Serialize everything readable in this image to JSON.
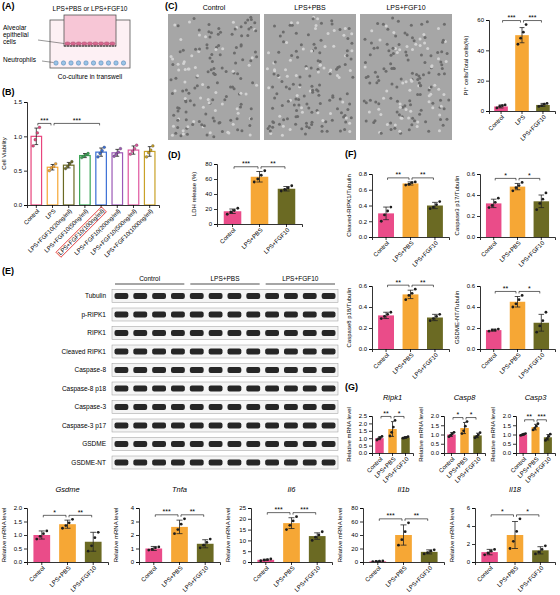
{
  "schematic": {
    "label": "(A)",
    "treatment": "LPS+PBS or LPS+FGF10",
    "epithelial": "Alveolar epithelial cells",
    "neutrophils": "Neutrophils",
    "caption": "Co-culture in transwell"
  },
  "images": {
    "label": "(C)",
    "titles": [
      "Control",
      "LPS+PBS",
      "LPS+FGF10"
    ]
  },
  "blot": {
    "label": "(E)",
    "groups": [
      "Control",
      "LPS+PBS",
      "LPS+FGF10"
    ],
    "rows": [
      "Tubulin",
      "p-RIPK1",
      "RIPK1",
      "Cleaved RIPK1",
      "Caspase-8",
      "Caspase-8 p18",
      "Caspase-3",
      "Caspase-3 p17",
      "GSDME",
      "GSDME-NT"
    ]
  },
  "chart_data": [
    {
      "type": "bar",
      "panel": "(B)",
      "y_label": "Cell Viability",
      "categories": [
        "Control",
        "LPS",
        "LPS+FGF10(20ng/ml)",
        "LPS+FGF10(50ng/ml)",
        "LPS+FGF10(100ng/ml)",
        "LPS+FGF10(200ng/ml)",
        "LPS+FGF10(500ng/ml)",
        "LPS+FGF10(1000ng/ml)"
      ],
      "values": [
        1.0,
        0.55,
        0.58,
        0.72,
        0.77,
        0.76,
        0.8,
        0.78
      ],
      "errors": [
        0.12,
        0.04,
        0.04,
        0.03,
        0.06,
        0.05,
        0.06,
        0.07
      ],
      "points": [
        [
          0.86,
          0.95,
          1.05,
          1.13
        ],
        [
          0.5,
          0.54,
          0.56,
          0.6
        ],
        [
          0.53,
          0.56,
          0.6,
          0.63
        ],
        [
          0.69,
          0.71,
          0.73,
          0.75
        ],
        [
          0.7,
          0.75,
          0.79,
          0.84
        ],
        [
          0.71,
          0.74,
          0.77,
          0.82
        ],
        [
          0.74,
          0.78,
          0.82,
          0.87
        ],
        [
          0.7,
          0.76,
          0.8,
          0.86
        ]
      ],
      "colors": [
        "#e8457d",
        "#f6a735",
        "#6b6a23",
        "#3aa655",
        "#3b6fd6",
        "#9b59b6",
        "#e056a0",
        "#c9a227"
      ],
      "ylim": [
        0,
        1.5
      ],
      "yticks": [
        {
          "value": 0,
          "label": "0.0"
        },
        0.5,
        {
          "value": 1,
          "label": "1.0"
        },
        1.5
      ],
      "annotations": [
        {
          "text": "***",
          "between": [
            "Control",
            "LPS"
          ]
        },
        {
          "text": "***",
          "between": [
            "LPS",
            "LPS+FGF10(100ng/ml)"
          ]
        },
        {
          "box_around": "LPS+FGF10(100ng/ml)"
        }
      ]
    },
    {
      "type": "bar",
      "y_label": "PI⁺ cells/Total cells(%)",
      "categories": [
        "Control",
        "LPS",
        "LPS+FGF10"
      ],
      "values": [
        3,
        50,
        4
      ],
      "errors": [
        1,
        5,
        1
      ],
      "points": [
        [
          2,
          3,
          3.5,
          4
        ],
        [
          44,
          48,
          52,
          57
        ],
        [
          3,
          3.5,
          4.5,
          5
        ]
      ],
      "colors": [
        "#ea4c89",
        "#f6a735",
        "#6b6a23"
      ],
      "ylim": [
        0,
        60
      ],
      "yticks": [
        0,
        20,
        40,
        60
      ],
      "annotations": [
        {
          "text": "***",
          "between": [
            "Control",
            "LPS"
          ]
        },
        {
          "text": "***",
          "between": [
            "LPS",
            "LPS+FGF10"
          ]
        }
      ]
    },
    {
      "type": "bar",
      "panel": "(D)",
      "y_label": "LDH release (%)",
      "categories": [
        "Control",
        "LPS+PBS",
        "LPS+FGF10"
      ],
      "values": [
        17,
        63,
        47
      ],
      "errors": [
        3,
        7,
        3
      ],
      "points": [
        [
          13,
          16,
          18,
          21
        ],
        [
          56,
          60,
          65,
          71
        ],
        [
          44,
          46,
          48,
          51
        ]
      ],
      "colors": [
        "#ea4c89",
        "#f6a735",
        "#6b6a23"
      ],
      "ylim": [
        0,
        80
      ],
      "yticks": [
        0,
        20,
        40,
        60,
        80
      ],
      "annotations": [
        {
          "text": "***",
          "between": [
            "Control",
            "LPS+PBS"
          ]
        },
        {
          "text": "**",
          "between": [
            "LPS+PBS",
            "LPS+FGF10"
          ]
        }
      ]
    },
    {
      "type": "bar",
      "panel": "(F)",
      "y_label": "Cleaved-RIPK1/Tubulin",
      "categories": [
        "Control",
        "LPS+PBS",
        "LPS+FGF10"
      ],
      "values": [
        0.3,
        0.68,
        0.4
      ],
      "errors": [
        0.08,
        0.02,
        0.04
      ],
      "points": [
        [
          0.2,
          0.28,
          0.33,
          0.38
        ],
        [
          0.66,
          0.67,
          0.69,
          0.7
        ],
        [
          0.36,
          0.38,
          0.41,
          0.45
        ]
      ],
      "colors": [
        "#ea4c89",
        "#f6a735",
        "#6b6a23"
      ],
      "ylim": [
        0,
        0.8
      ],
      "yticks": [
        {
          "value": 0,
          "label": "0.0"
        },
        0.2,
        0.4,
        0.6,
        0.8
      ],
      "annotations": [
        {
          "text": "**",
          "between": [
            "Control",
            "LPS+PBS"
          ]
        },
        {
          "text": "**",
          "between": [
            "LPS+PBS",
            "LPS+FGF10"
          ]
        }
      ]
    },
    {
      "type": "bar",
      "y_label": "Caspase3 p17/Tubulin",
      "categories": [
        "Control",
        "LPS+PBS",
        "LPS+FGF10"
      ],
      "values": [
        0.32,
        0.48,
        0.34
      ],
      "errors": [
        0.04,
        0.03,
        0.06
      ],
      "points": [
        [
          0.28,
          0.3,
          0.33,
          0.37
        ],
        [
          0.44,
          0.47,
          0.49,
          0.52
        ],
        [
          0.26,
          0.32,
          0.36,
          0.42
        ]
      ],
      "colors": [
        "#ea4c89",
        "#f6a735",
        "#6b6a23"
      ],
      "ylim": [
        0,
        0.6
      ],
      "yticks": [
        {
          "value": 0,
          "label": "0.0"
        },
        0.2,
        0.4,
        0.6
      ],
      "annotations": [
        {
          "text": "*",
          "between": [
            "Control",
            "LPS+PBS"
          ]
        },
        {
          "text": "*",
          "between": [
            "LPS+PBS",
            "LPS+FGF10"
          ]
        }
      ]
    },
    {
      "type": "bar",
      "y_label": "Caspase8 p18/Tubulin",
      "categories": [
        "Control",
        "LPS+PBS",
        "LPS+FGF10"
      ],
      "values": [
        0.32,
        0.52,
        0.3
      ],
      "errors": [
        0.03,
        0.04,
        0.03
      ],
      "points": [
        [
          0.29,
          0.31,
          0.33,
          0.35
        ],
        [
          0.47,
          0.51,
          0.53,
          0.57
        ],
        [
          0.27,
          0.29,
          0.31,
          0.33
        ]
      ],
      "colors": [
        "#ea4c89",
        "#f6a735",
        "#6b6a23"
      ],
      "ylim": [
        0,
        0.6
      ],
      "yticks": [
        {
          "value": 0,
          "label": "0.0"
        },
        0.2,
        0.4,
        0.6
      ],
      "annotations": [
        {
          "text": "**",
          "between": [
            "Control",
            "LPS+PBS"
          ]
        },
        {
          "text": "**",
          "between": [
            "LPS+PBS",
            "LPS+FGF10"
          ]
        }
      ]
    },
    {
      "type": "bar",
      "y_label": "GSDME-NT/Tubulin",
      "categories": [
        "Control",
        "LPS+PBS",
        "LPS+FGF10"
      ],
      "values": [
        0.18,
        0.45,
        0.25
      ],
      "errors": [
        0.01,
        0.05,
        0.08
      ],
      "points": [
        [
          0.17,
          0.18,
          0.18,
          0.19
        ],
        [
          0.4,
          0.43,
          0.47,
          0.51
        ],
        [
          0.16,
          0.22,
          0.27,
          0.35
        ]
      ],
      "colors": [
        "#ea4c89",
        "#f6a735",
        "#6b6a23"
      ],
      "ylim": [
        0,
        0.6
      ],
      "yticks": [
        {
          "value": 0,
          "label": "0.0"
        },
        0.2,
        0.4,
        0.6
      ],
      "annotations": [
        {
          "text": "**",
          "between": [
            "Control",
            "LPS+PBS"
          ]
        },
        {
          "text": "*",
          "between": [
            "LPS+PBS",
            "LPS+FGF10"
          ]
        }
      ]
    },
    {
      "type": "bar",
      "panel": "(G)",
      "title": "Ripk1",
      "y_label": "Relative mRNA level",
      "categories": [
        "Control",
        "LPS+PBS",
        "LPS+FGF10"
      ],
      "values": [
        1.0,
        1.62,
        1.05
      ],
      "errors": [
        0.1,
        0.5,
        0.05
      ],
      "points": [
        [
          0.88,
          0.97,
          1.03,
          1.12
        ],
        [
          1.15,
          1.4,
          1.75,
          2.2
        ],
        [
          1.0,
          1.03,
          1.06,
          1.1
        ]
      ],
      "colors": [
        "#ea4c89",
        "#f6a735",
        "#6b6a23"
      ],
      "ylim": [
        0,
        2.5
      ],
      "yticks": [
        {
          "value": 0,
          "label": "0.0"
        },
        0.5,
        {
          "value": 1,
          "label": "1.0"
        },
        1.5,
        {
          "value": 2,
          "label": "2.0"
        },
        2.5
      ],
      "annotations": [
        {
          "text": "**",
          "between": [
            "Control",
            "LPS+PBS"
          ]
        },
        {
          "text": "*",
          "between": [
            "LPS+PBS",
            "LPS+FGF10"
          ]
        }
      ]
    },
    {
      "type": "bar",
      "title": "Casp8",
      "y_label": "Relative mRNA level",
      "categories": [
        "Control",
        "LPS+PBS",
        "LPS+FGF10"
      ],
      "values": [
        1.0,
        1.35,
        0.95
      ],
      "errors": [
        0.1,
        0.3,
        0.12
      ],
      "points": [
        [
          0.88,
          0.96,
          1.04,
          1.12
        ],
        [
          1.05,
          1.2,
          1.45,
          1.7
        ],
        [
          0.82,
          0.9,
          0.98,
          1.1
        ]
      ],
      "colors": [
        "#ea4c89",
        "#f6a735",
        "#6b6a23"
      ],
      "ylim": [
        0,
        2
      ],
      "yticks": [
        {
          "value": 0,
          "label": "0.0"
        },
        0.5,
        {
          "value": 1,
          "label": "1.0"
        },
        1.5,
        {
          "value": 2,
          "label": "2.0"
        }
      ],
      "annotations": [
        {
          "text": "*",
          "between": [
            "Control",
            "LPS+PBS"
          ]
        },
        {
          "text": "*",
          "between": [
            "LPS+PBS",
            "LPS+FGF10"
          ]
        }
      ]
    },
    {
      "type": "bar",
      "title": "Casp3",
      "y_label": "Relative mRNA level",
      "categories": [
        "Control",
        "LPS+PBS",
        "LPS+FGF10"
      ],
      "values": [
        1.0,
        1.4,
        0.85
      ],
      "errors": [
        0.05,
        0.15,
        0.15
      ],
      "points": [
        [
          0.95,
          0.98,
          1.02,
          1.05
        ],
        [
          1.25,
          1.35,
          1.45,
          1.58
        ],
        [
          0.68,
          0.78,
          0.9,
          1.02
        ]
      ],
      "colors": [
        "#ea4c89",
        "#f6a735",
        "#6b6a23"
      ],
      "ylim": [
        0,
        2
      ],
      "yticks": [
        {
          "value": 0,
          "label": "0.0"
        },
        0.5,
        {
          "value": 1,
          "label": "1.0"
        },
        1.5,
        {
          "value": 2,
          "label": "2.0"
        }
      ],
      "annotations": [
        {
          "text": "**",
          "between": [
            "Control",
            "LPS+PBS"
          ]
        },
        {
          "text": "***",
          "between": [
            "LPS+PBS",
            "LPS+FGF10"
          ]
        }
      ]
    },
    {
      "type": "bar",
      "title": "Gsdme",
      "y_label": "Relative mRNA level",
      "categories": [
        "Control",
        "LPS+PBS",
        "LPS+FGF10"
      ],
      "values": [
        1.0,
        1.4,
        0.75
      ],
      "errors": [
        0.15,
        0.15,
        0.35
      ],
      "points": [
        [
          0.85,
          0.95,
          1.05,
          1.15
        ],
        [
          1.25,
          1.35,
          1.45,
          1.58
        ],
        [
          0.4,
          0.6,
          0.9,
          1.1
        ]
      ],
      "colors": [
        "#ea4c89",
        "#f6a735",
        "#6b6a23"
      ],
      "ylim": [
        0,
        2
      ],
      "yticks": [
        {
          "value": 0,
          "label": "0.0"
        },
        0.5,
        {
          "value": 1,
          "label": "1.0"
        },
        1.5,
        {
          "value": 2,
          "label": "2.0"
        }
      ],
      "annotations": [
        {
          "text": "*",
          "between": [
            "Control",
            "LPS+PBS"
          ]
        },
        {
          "text": "**",
          "between": [
            "LPS+PBS",
            "LPS+FGF10"
          ]
        }
      ]
    },
    {
      "type": "bar",
      "title": "Tnfa",
      "y_label": "Relative mRNA level",
      "categories": [
        "Control",
        "LPS+PBS",
        "LPS+FGF10"
      ],
      "values": [
        1.0,
        2.6,
        1.35
      ],
      "errors": [
        0.15,
        0.5,
        0.3
      ],
      "points": [
        [
          0.88,
          0.95,
          1.05,
          1.12
        ],
        [
          2.1,
          2.4,
          2.8,
          3.2
        ],
        [
          1.05,
          1.25,
          1.45,
          1.7
        ]
      ],
      "colors": [
        "#ea4c89",
        "#f6a735",
        "#6b6a23"
      ],
      "ylim": [
        0,
        4
      ],
      "yticks": [
        0,
        1,
        2,
        3,
        4
      ],
      "annotations": [
        {
          "text": "***",
          "between": [
            "Control",
            "LPS+PBS"
          ]
        },
        {
          "text": "**",
          "between": [
            "LPS+PBS",
            "LPS+FGF10"
          ]
        }
      ]
    },
    {
      "type": "bar",
      "title": "Il6",
      "y_label": "Relative mRNA level",
      "categories": [
        "Control",
        "LPS+PBS",
        "LPS+FGF10"
      ],
      "values": [
        1.0,
        18,
        12
      ],
      "errors": [
        0.3,
        2.5,
        1.5
      ],
      "points": [
        [
          0.6,
          0.9,
          1.1,
          1.4
        ],
        [
          15,
          17,
          19,
          21
        ],
        [
          10,
          11.5,
          12.5,
          14
        ]
      ],
      "colors": [
        "#ea4c89",
        "#f6a735",
        "#6b6a23"
      ],
      "ylim": [
        0,
        25
      ],
      "yticks": [
        0,
        5,
        10,
        15,
        20,
        25
      ],
      "annotations": [
        {
          "text": "***",
          "between": [
            "Control",
            "LPS+PBS"
          ]
        },
        {
          "text": "***",
          "between": [
            "LPS+PBS",
            "LPS+FGF10"
          ]
        }
      ]
    },
    {
      "type": "bar",
      "title": "Il1b",
      "y_label": "Relative mRNA level",
      "categories": [
        "Control",
        "LPS+PBS",
        "LPS+FGF10"
      ],
      "values": [
        1.0,
        40,
        15
      ],
      "errors": [
        0.5,
        15,
        3
      ],
      "points": [
        [
          0.5,
          0.8,
          1.2,
          1.5
        ],
        [
          25,
          33,
          45,
          58
        ],
        [
          12,
          14,
          16,
          18
        ]
      ],
      "colors": [
        "#ea4c89",
        "#f6a735",
        "#6b6a23"
      ],
      "ylim": [
        0,
        80
      ],
      "yticks": [
        0,
        20,
        40,
        60,
        80
      ],
      "annotations": [
        {
          "text": "***",
          "between": [
            "Control",
            "LPS+PBS"
          ]
        },
        {
          "text": "**",
          "between": [
            "LPS+PBS",
            "LPS+FGF10"
          ]
        }
      ]
    },
    {
      "type": "bar",
      "title": "Il18",
      "y_label": "Relative mRNA level",
      "categories": [
        "Control",
        "LPS+PBS",
        "LPS+FGF10"
      ],
      "values": [
        1.1,
        3.0,
        1.3
      ],
      "errors": [
        0.3,
        1.5,
        0.4
      ],
      "points": [
        [
          0.8,
          1.0,
          1.2,
          1.4
        ],
        [
          1.5,
          2.3,
          3.4,
          4.8
        ],
        [
          0.9,
          1.1,
          1.4,
          1.8
        ]
      ],
      "colors": [
        "#ea4c89",
        "#f6a735",
        "#6b6a23"
      ],
      "ylim": [
        0,
        6
      ],
      "yticks": [
        0,
        2,
        4,
        6
      ],
      "annotations": [
        {
          "text": "*",
          "between": [
            "Control",
            "LPS+PBS"
          ]
        },
        {
          "text": "*",
          "between": [
            "LPS+PBS",
            "LPS+FGF10"
          ]
        }
      ]
    }
  ]
}
